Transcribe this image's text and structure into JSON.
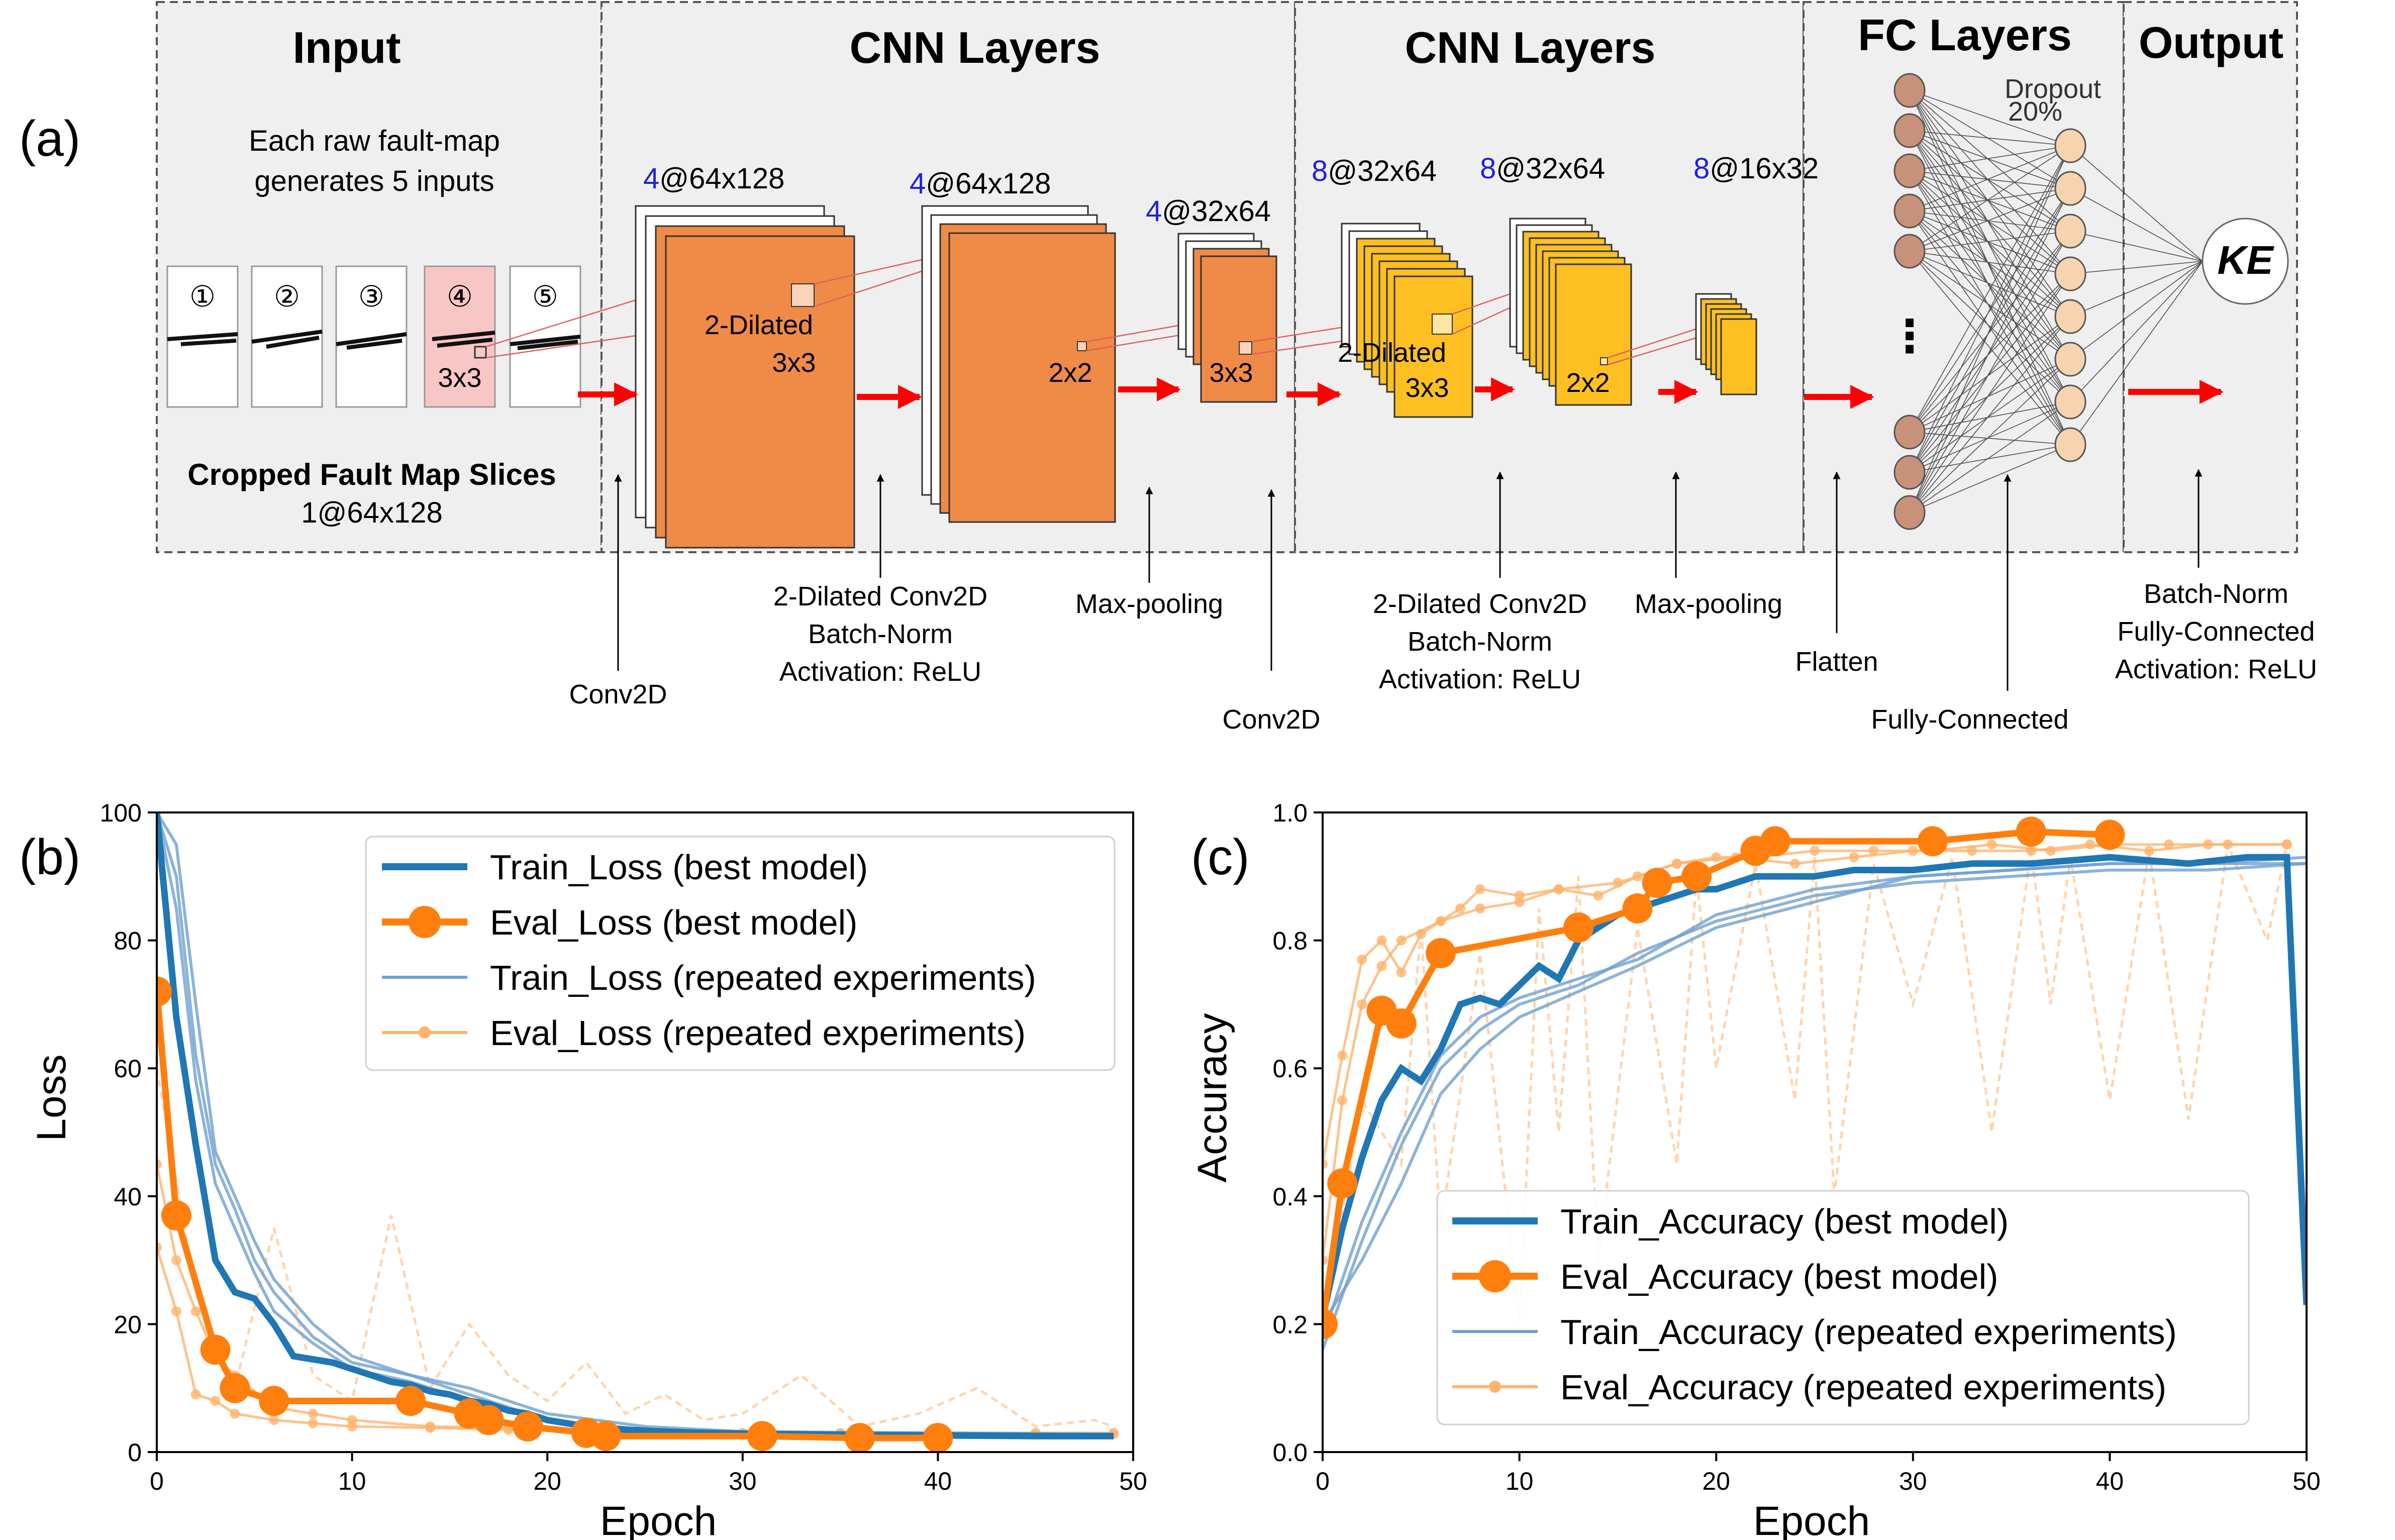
{
  "panel_labels": {
    "a": "(a)",
    "b": "(b)",
    "c": "(c)"
  },
  "diagram": {
    "sections": [
      {
        "title": "Input"
      },
      {
        "title": "CNN Layers"
      },
      {
        "title": "CNN Layers"
      },
      {
        "title": "FC Layers"
      },
      {
        "title": "Output"
      }
    ],
    "input_note_line1": "Each raw fault-map",
    "input_note_line2": "generates 5 inputs",
    "slice_labels": [
      "①",
      "②",
      "③",
      "④",
      "⑤"
    ],
    "slice_kernel": "3x3",
    "cropped_title": "Cropped Fault Map Slices",
    "cropped_dims": "1@64x128",
    "dims": [
      {
        "n": "4",
        "rest": "@64x128"
      },
      {
        "n": "4",
        "rest": "@64x128"
      },
      {
        "n": "4",
        "rest": "@32x64"
      },
      {
        "n": "8",
        "rest": "@32x64"
      },
      {
        "n": "8",
        "rest": "@32x64"
      },
      {
        "n": "8",
        "rest": "@16x32"
      }
    ],
    "kernel_labels": {
      "dilated1_a": "2-Dilated",
      "dilated1_b": "3x3",
      "pool1": "2x2",
      "conv2": "3x3",
      "dilated2_a": "2-Dilated",
      "dilated2_b": "3x3",
      "pool2": "2x2"
    },
    "ellipsis": "⋮",
    "dropout_line1": "Dropout",
    "dropout_line2": "20%",
    "output_node": "KE",
    "annotations": {
      "conv2d_1": "Conv2D",
      "dil_conv_1": [
        "2-Dilated  Conv2D",
        "Batch-Norm",
        "Activation: ReLU"
      ],
      "maxpool_1": "Max-pooling",
      "conv2d_2": "Conv2D",
      "dil_conv_2": [
        "2-Dilated  Conv2D",
        "Batch-Norm",
        "Activation: ReLU"
      ],
      "maxpool_2": "Max-pooling",
      "flatten": "Flatten",
      "fully_connected": "Fully-Connected",
      "output_block": [
        "Batch-Norm",
        "Fully-Connected",
        "Activation: ReLU"
      ]
    },
    "colors": {
      "orange_block": "#f08a47",
      "yellow_block": "#fdc020",
      "arrow": "#ff0000",
      "input_node": "#c8917a",
      "fc_node": "#f8d3b0",
      "dim_number": "#2020e0",
      "section_bg": "#efefef",
      "highlight_slice": "#f9c6c6"
    }
  },
  "chart_data": [
    {
      "type": "line",
      "panel": "(b)",
      "xlabel": "Epoch",
      "ylabel": "Loss",
      "xlim": [
        0,
        50
      ],
      "ylim": [
        0,
        100
      ],
      "xticks": [
        0,
        10,
        20,
        30,
        40,
        50
      ],
      "yticks": [
        0,
        20,
        40,
        60,
        80,
        100
      ],
      "legend_position": "top-right",
      "series": [
        {
          "name": "Train_Loss (best model)",
          "color": "#1f77b4",
          "style": "thick",
          "x": [
            0,
            1,
            2,
            3,
            4,
            5,
            6,
            7,
            8,
            9,
            10,
            11,
            12,
            13,
            14,
            15,
            16,
            17,
            18,
            19,
            20,
            22,
            24,
            26,
            28,
            30,
            35,
            40,
            45,
            49
          ],
          "y": [
            100,
            68,
            48,
            30,
            25,
            24,
            20,
            15,
            14.5,
            14,
            13,
            12,
            11,
            10.5,
            9.5,
            9,
            8,
            7.5,
            6.5,
            6,
            5,
            4,
            3.5,
            3.2,
            3,
            2.9,
            2.7,
            2.6,
            2.5,
            2.5
          ]
        },
        {
          "name": "Eval_Loss (best model)",
          "color": "#ff7f0e",
          "style": "thick-markers",
          "x": [
            0,
            1,
            3,
            4,
            6,
            13,
            16,
            17,
            19,
            22,
            23,
            31,
            36,
            40
          ],
          "y": [
            72,
            37,
            16,
            10,
            8,
            8,
            6,
            5,
            4,
            3,
            2.5,
            2.5,
            2.2,
            2.2
          ]
        },
        {
          "name": "Train_Loss (repeated experiments)",
          "color": "#6fa0cf",
          "style": "thin",
          "runs": [
            {
              "x": [
                0,
                1,
                2,
                3,
                4,
                5,
                6,
                8,
                10,
                13,
                16,
                20,
                25,
                30,
                40,
                49
              ],
              "y": [
                100,
                90,
                62,
                45,
                38,
                30,
                25,
                18,
                14,
                12,
                9,
                5,
                3.5,
                3,
                2.8,
                2.7
              ]
            },
            {
              "x": [
                0,
                1,
                2,
                3,
                4,
                5,
                6,
                8,
                10,
                13,
                16,
                20,
                25,
                30,
                40,
                49
              ],
              "y": [
                100,
                95,
                70,
                47,
                40,
                33,
                27,
                20,
                15,
                12,
                10,
                6,
                4,
                3.2,
                3,
                2.8
              ]
            },
            {
              "x": [
                0,
                1,
                2,
                3,
                4,
                5,
                6,
                8,
                10,
                13,
                16,
                20,
                25,
                30,
                40,
                49
              ],
              "y": [
                100,
                85,
                58,
                42,
                35,
                28,
                22,
                17,
                13,
                11,
                8,
                5,
                3.5,
                3,
                2.7,
                2.6
              ]
            }
          ]
        },
        {
          "name": "Eval_Loss (repeated experiments)",
          "color": "#ffb36b",
          "style": "thin-markers",
          "runs": [
            {
              "x": [
                0,
                1,
                2,
                3,
                4,
                6,
                8,
                10,
                14,
                18,
                22,
                26,
                30,
                35,
                40,
                45,
                49
              ],
              "y": [
                45,
                30,
                22,
                15,
                12,
                7,
                6,
                5,
                4,
                3.8,
                3.5,
                3.2,
                3,
                3,
                3,
                3,
                3
              ]
            },
            {
              "x": [
                0,
                1,
                2,
                3,
                4,
                6,
                8,
                10,
                14,
                18,
                22,
                26,
                30,
                35,
                40,
                45,
                49
              ],
              "y": [
                32,
                22,
                9,
                8,
                6,
                5,
                4.5,
                4,
                3.8,
                3.5,
                3.2,
                3,
                2.8,
                2.8,
                2.8,
                2.8,
                2.8
              ]
            },
            {
              "x": [
                0,
                2,
                4,
                6,
                8,
                10,
                12,
                14,
                16,
                18,
                20,
                22,
                24,
                26,
                28,
                30,
                33,
                36,
                39,
                42,
                45,
                48,
                49
              ],
              "y": [
                60,
                25,
                10,
                35,
                12,
                8,
                37,
                10,
                20,
                12,
                8,
                14,
                6,
                9,
                5,
                6,
                12,
                4,
                6,
                10,
                4,
                5,
                4
              ]
            }
          ]
        }
      ]
    },
    {
      "type": "line",
      "panel": "(c)",
      "xlabel": "Epoch",
      "ylabel": "Accuracy",
      "xlim": [
        0,
        50
      ],
      "ylim": [
        0.0,
        1.0
      ],
      "xticks": [
        0,
        10,
        20,
        30,
        40,
        50
      ],
      "yticks": [
        0.0,
        0.2,
        0.4,
        0.6,
        0.8,
        1.0
      ],
      "legend_position": "bottom-right",
      "series": [
        {
          "name": "Train_Accuracy (best model)",
          "color": "#1f77b4",
          "style": "thick",
          "x": [
            0,
            1,
            2,
            3,
            4,
            5,
            6,
            7,
            8,
            9,
            10,
            11,
            12,
            13,
            14,
            15,
            16,
            17,
            18,
            19,
            20,
            21,
            22,
            23,
            24,
            25,
            27,
            30,
            33,
            36,
            40,
            44,
            47,
            49,
            50
          ],
          "y": [
            0.21,
            0.35,
            0.46,
            0.55,
            0.6,
            0.58,
            0.63,
            0.7,
            0.71,
            0.7,
            0.73,
            0.76,
            0.74,
            0.8,
            0.82,
            0.84,
            0.85,
            0.86,
            0.87,
            0.88,
            0.88,
            0.89,
            0.9,
            0.9,
            0.9,
            0.9,
            0.91,
            0.91,
            0.92,
            0.92,
            0.93,
            0.92,
            0.93,
            0.93,
            0.23
          ]
        },
        {
          "name": "Eval_Accuracy (best model)",
          "color": "#ff7f0e",
          "style": "thick-markers",
          "x": [
            0,
            1,
            3,
            4,
            6,
            13,
            16,
            17,
            19,
            22,
            23,
            31,
            36,
            40
          ],
          "y": [
            0.2,
            0.42,
            0.69,
            0.67,
            0.78,
            0.82,
            0.85,
            0.89,
            0.9,
            0.94,
            0.955,
            0.955,
            0.97,
            0.965
          ]
        },
        {
          "name": "Train_Accuracy (repeated experiments)",
          "color": "#6fa0cf",
          "style": "thin",
          "runs": [
            {
              "x": [
                0,
                2,
                4,
                6,
                8,
                10,
                13,
                16,
                20,
                25,
                30,
                35,
                40,
                45,
                50
              ],
              "y": [
                0.16,
                0.33,
                0.48,
                0.6,
                0.66,
                0.7,
                0.73,
                0.78,
                0.83,
                0.87,
                0.89,
                0.9,
                0.91,
                0.91,
                0.92
              ]
            },
            {
              "x": [
                0,
                2,
                4,
                6,
                8,
                10,
                13,
                16,
                20,
                25,
                30,
                35,
                40,
                45,
                50
              ],
              "y": [
                0.2,
                0.3,
                0.42,
                0.56,
                0.63,
                0.68,
                0.72,
                0.76,
                0.82,
                0.86,
                0.9,
                0.91,
                0.92,
                0.92,
                0.93
              ]
            },
            {
              "x": [
                0,
                2,
                4,
                6,
                8,
                10,
                13,
                16,
                20,
                25,
                30,
                35,
                40,
                45,
                50
              ],
              "y": [
                0.18,
                0.36,
                0.5,
                0.62,
                0.68,
                0.71,
                0.74,
                0.77,
                0.84,
                0.88,
                0.9,
                0.91,
                0.92,
                0.92,
                0.92
              ]
            }
          ]
        },
        {
          "name": "Eval_Accuracy (repeated experiments)",
          "color": "#ffb36b",
          "style": "thin-markers",
          "runs": [
            {
              "x": [
                0,
                1,
                2,
                3,
                4,
                5,
                6,
                7,
                8,
                10,
                12,
                14,
                16,
                18,
                20,
                22,
                25,
                28,
                31,
                34,
                37,
                40,
                43,
                46,
                49
              ],
              "y": [
                0.45,
                0.62,
                0.77,
                0.8,
                0.75,
                0.81,
                0.83,
                0.85,
                0.88,
                0.87,
                0.88,
                0.87,
                0.9,
                0.92,
                0.93,
                0.93,
                0.94,
                0.94,
                0.94,
                0.95,
                0.94,
                0.95,
                0.95,
                0.95,
                0.95
              ]
            },
            {
              "x": [
                0,
                1,
                2,
                3,
                4,
                6,
                8,
                10,
                12,
                15,
                18,
                21,
                24,
                27,
                30,
                33,
                36,
                39,
                42,
                45,
                49
              ],
              "y": [
                0.3,
                0.55,
                0.7,
                0.76,
                0.8,
                0.83,
                0.85,
                0.86,
                0.88,
                0.89,
                0.92,
                0.93,
                0.92,
                0.93,
                0.94,
                0.94,
                0.94,
                0.95,
                0.94,
                0.95,
                0.95
              ]
            },
            {
              "x": [
                0,
                2,
                4,
                5,
                6,
                8,
                10,
                11,
                12,
                13,
                14,
                16,
                18,
                19,
                20,
                22,
                24,
                25,
                26,
                28,
                30,
                32,
                34,
                36,
                37,
                38,
                40,
                42,
                44,
                46,
                48,
                49
              ],
              "y": [
                0.2,
                0.55,
                0.45,
                0.82,
                0.35,
                0.78,
                0.2,
                0.85,
                0.5,
                0.9,
                0.3,
                0.82,
                0.45,
                0.9,
                0.6,
                0.92,
                0.55,
                0.93,
                0.4,
                0.92,
                0.7,
                0.93,
                0.5,
                0.94,
                0.7,
                0.93,
                0.55,
                0.94,
                0.52,
                0.95,
                0.8,
                0.95
              ]
            }
          ]
        }
      ]
    }
  ]
}
